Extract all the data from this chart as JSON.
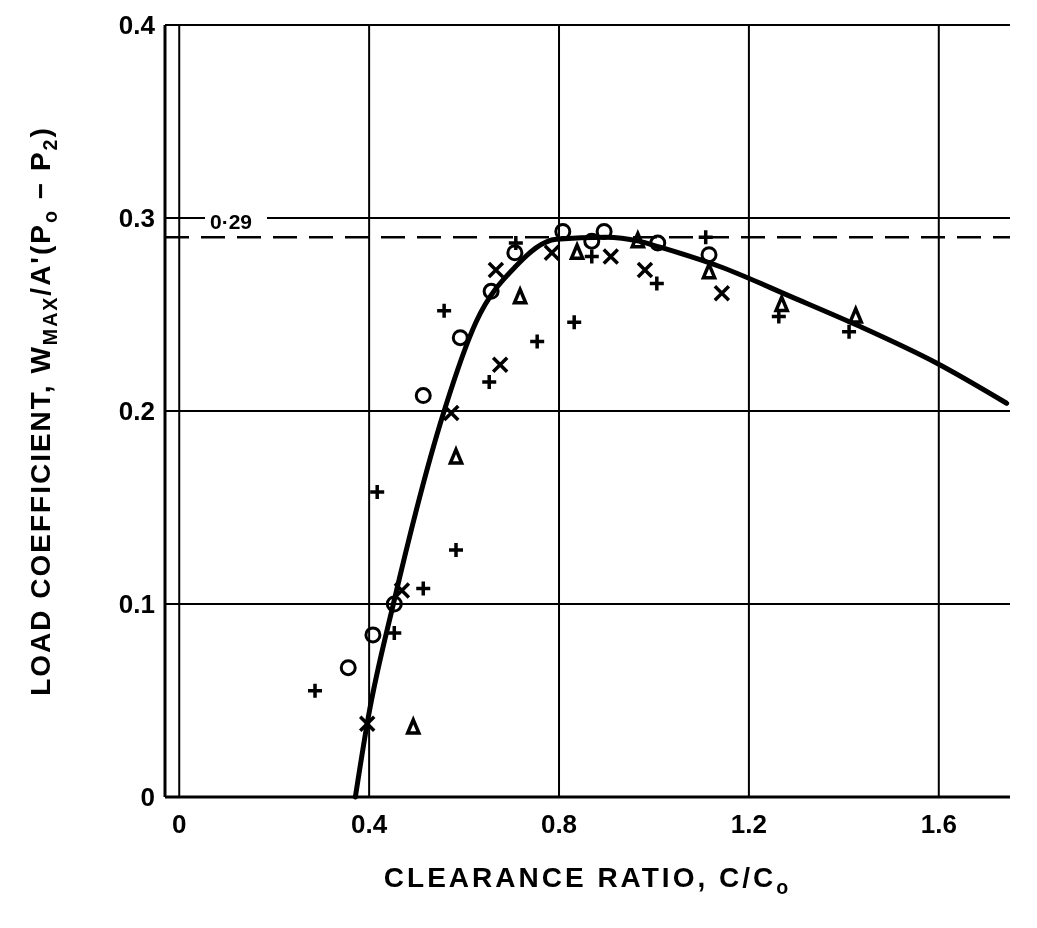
{
  "chart_data": {
    "type": "scatter",
    "xlabel": "CLEARANCE RATIO, C/C$_{o}$",
    "ylabel": "LOAD COEFFICIENT, W$_{MAX}$/A'(P$_{o}$ − P$_{2}$)",
    "xlim": [
      -0.03,
      1.75
    ],
    "ylim": [
      0,
      0.4
    ],
    "xticks": [
      0,
      0.4,
      0.8,
      1.2,
      1.6
    ],
    "yticks": [
      0,
      0.1,
      0.2,
      0.3,
      0.4
    ],
    "grid": true,
    "ref_lines": [
      {
        "axis": "y",
        "value": 0.29,
        "label": "0·29",
        "line_style": "dashed",
        "color": "#000000"
      }
    ],
    "series": [
      {
        "color": "#000000",
        "marker": "circle",
        "x": [
          0.356,
          0.408,
          0.453,
          0.514,
          0.592,
          0.657,
          0.707,
          0.808,
          0.869,
          0.895,
          1.008,
          1.116
        ],
        "values": [
          0.067,
          0.084,
          0.1,
          0.208,
          0.238,
          0.262,
          0.282,
          0.293,
          0.288,
          0.293,
          0.287,
          0.281
        ]
      },
      {
        "color": "#000000",
        "marker": "cross",
        "x": [
          0.396,
          0.469,
          0.573,
          0.676,
          0.667,
          0.785,
          0.909,
          0.981,
          1.143
        ],
        "values": [
          0.038,
          0.107,
          0.199,
          0.224,
          0.273,
          0.282,
          0.28,
          0.273,
          0.261
        ]
      },
      {
        "color": "#000000",
        "marker": "plus",
        "x": [
          0.286,
          0.453,
          0.514,
          0.583,
          0.417,
          0.558,
          0.653,
          0.754,
          0.832,
          0.709,
          0.869,
          1.006,
          1.109,
          1.263,
          1.411
        ],
        "values": [
          0.055,
          0.085,
          0.108,
          0.128,
          0.158,
          0.252,
          0.215,
          0.236,
          0.246,
          0.287,
          0.28,
          0.266,
          0.29,
          0.249,
          0.241
        ]
      },
      {
        "color": "#000000",
        "marker": "triangle",
        "x": [
          0.493,
          0.583,
          0.718,
          0.838,
          0.966,
          1.116,
          1.269,
          1.425
        ],
        "values": [
          0.036,
          0.176,
          0.259,
          0.282,
          0.288,
          0.272,
          0.255,
          0.249
        ]
      },
      {
        "type": "line",
        "color": "#000000",
        "x": [
          0.371,
          0.398,
          0.453,
          0.558,
          0.625,
          0.709,
          0.794,
          0.899,
          0.968,
          1.011,
          1.137,
          1.291,
          1.432,
          1.594,
          1.743
        ],
        "values": [
          0,
          0.041,
          0.102,
          0.2,
          0.246,
          0.275,
          0.289,
          0.29,
          0.288,
          0.285,
          0.275,
          0.259,
          0.244,
          0.225,
          0.204
        ]
      }
    ]
  }
}
